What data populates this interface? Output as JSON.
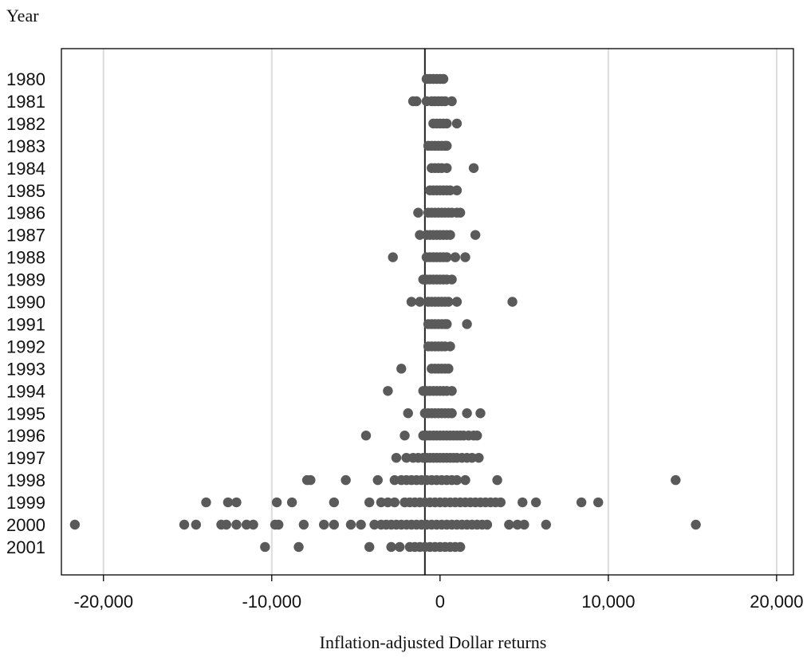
{
  "chart_data": {
    "type": "scatter",
    "title": "",
    "xlabel": "Inflation-adjusted Dollar returns",
    "ylabel": "Year",
    "xlim": [
      -22500,
      21000
    ],
    "x_ticks": [
      -20000,
      -10000,
      0,
      10000,
      20000
    ],
    "x_tick_labels": [
      "-20,000",
      "-10,000",
      "0",
      "10,000",
      "20,000"
    ],
    "categories": [
      "1980",
      "1981",
      "1982",
      "1983",
      "1984",
      "1985",
      "1986",
      "1987",
      "1988",
      "1989",
      "1990",
      "1991",
      "1992",
      "1993",
      "1994",
      "1995",
      "1996",
      "1997",
      "1998",
      "1999",
      "2000",
      "2001"
    ],
    "reference_line_x": -900,
    "grid": "vertical",
    "marker_color": "#5a5a5a",
    "points": [
      {
        "year": "1980",
        "x": [
          -800,
          -600,
          -400,
          -200,
          0,
          200
        ]
      },
      {
        "year": "1981",
        "x": [
          -1600,
          -1400,
          -800,
          -500,
          -300,
          -100,
          100,
          300,
          700
        ]
      },
      {
        "year": "1982",
        "x": [
          -400,
          -200,
          0,
          200,
          400,
          1000
        ]
      },
      {
        "year": "1983",
        "x": [
          -700,
          -500,
          -300,
          -100,
          100,
          300,
          400
        ]
      },
      {
        "year": "1984",
        "x": [
          -500,
          -300,
          -100,
          100,
          400,
          2000
        ]
      },
      {
        "year": "1985",
        "x": [
          -600,
          -400,
          -200,
          0,
          200,
          400,
          600,
          1000
        ]
      },
      {
        "year": "1986",
        "x": [
          -1300,
          -700,
          -500,
          -300,
          -100,
          100,
          300,
          500,
          700,
          1000,
          1200
        ]
      },
      {
        "year": "1987",
        "x": [
          -1200,
          -800,
          -600,
          -400,
          -200,
          0,
          200,
          400,
          600,
          2100
        ]
      },
      {
        "year": "1988",
        "x": [
          -2800,
          -800,
          -600,
          -400,
          -200,
          0,
          200,
          400,
          900,
          1500
        ]
      },
      {
        "year": "1989",
        "x": [
          -1000,
          -800,
          -600,
          -400,
          -200,
          0,
          200,
          400,
          700
        ]
      },
      {
        "year": "1990",
        "x": [
          -1700,
          -1200,
          -700,
          -500,
          -300,
          -100,
          100,
          300,
          500,
          1000,
          4300
        ]
      },
      {
        "year": "1991",
        "x": [
          -700,
          -500,
          -300,
          -100,
          100,
          300,
          400,
          1600
        ]
      },
      {
        "year": "1992",
        "x": [
          -700,
          -500,
          -300,
          -100,
          100,
          300,
          600
        ]
      },
      {
        "year": "1993",
        "x": [
          -2300,
          -500,
          -300,
          -100,
          100,
          300,
          500
        ]
      },
      {
        "year": "1994",
        "x": [
          -3100,
          -1000,
          -800,
          -600,
          -400,
          -200,
          0,
          200,
          400,
          700
        ]
      },
      {
        "year": "1995",
        "x": [
          -1900,
          -900,
          -700,
          -500,
          -300,
          -100,
          100,
          300,
          500,
          700,
          1600,
          2400
        ]
      },
      {
        "year": "1996",
        "x": [
          -4400,
          -2100,
          -1000,
          -800,
          -600,
          -400,
          -200,
          0,
          200,
          400,
          600,
          800,
          1000,
          1200,
          1400,
          1700,
          2000,
          2200
        ]
      },
      {
        "year": "1997",
        "x": [
          -2600,
          -2000,
          -1600,
          -1300,
          -1000,
          -800,
          -600,
          -400,
          -200,
          0,
          200,
          400,
          600,
          800,
          1000,
          1300,
          1600,
          1900,
          2300
        ]
      },
      {
        "year": "1998",
        "x": [
          -7900,
          -7700,
          -5600,
          -3700,
          -2700,
          -2300,
          -2000,
          -1700,
          -1400,
          -1100,
          -800,
          -500,
          -200,
          100,
          400,
          700,
          1000,
          1500,
          3400,
          14000
        ]
      },
      {
        "year": "1999",
        "x": [
          -13900,
          -12600,
          -12100,
          -9700,
          -8800,
          -6300,
          -4200,
          -3500,
          -3100,
          -2700,
          -2100,
          -1800,
          -1500,
          -1200,
          -900,
          -600,
          -300,
          0,
          300,
          600,
          900,
          1200,
          1500,
          1800,
          2100,
          2400,
          2700,
          3000,
          3300,
          3600,
          4900,
          5700,
          8400,
          9400
        ]
      },
      {
        "year": "2000",
        "x": [
          -21700,
          -15200,
          -14500,
          -13000,
          -12700,
          -12100,
          -11500,
          -11100,
          -9800,
          -9600,
          -8100,
          -6900,
          -6300,
          -5300,
          -4700,
          -3900,
          -3500,
          -3200,
          -2900,
          -2600,
          -2300,
          -2000,
          -1700,
          -1400,
          -1100,
          -800,
          -500,
          -200,
          100,
          400,
          700,
          1000,
          1300,
          1600,
          1900,
          2200,
          2500,
          2800,
          4100,
          4600,
          5000,
          6300,
          15200
        ]
      },
      {
        "year": "2001",
        "x": [
          -10400,
          -8400,
          -4200,
          -2900,
          -2400,
          -1800,
          -1500,
          -1200,
          -900,
          -600,
          -300,
          0,
          300,
          600,
          900,
          1200
        ]
      }
    ]
  }
}
